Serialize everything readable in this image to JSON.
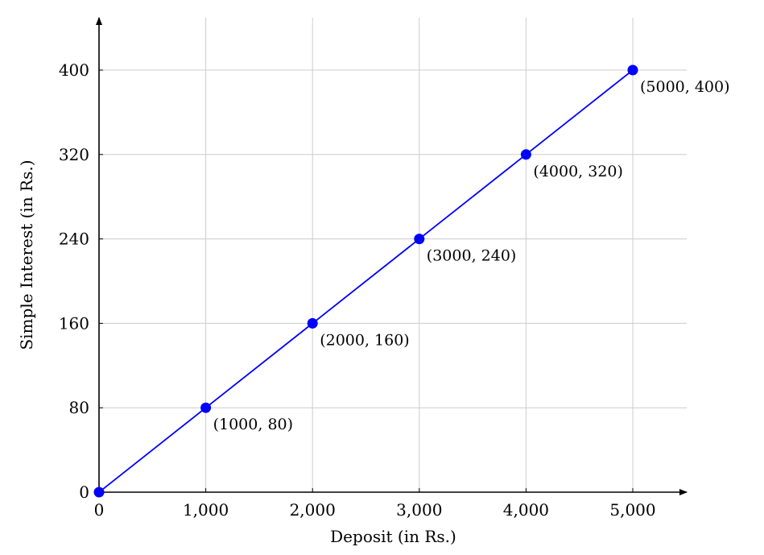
{
  "chart_data": {
    "type": "line",
    "title": "",
    "xlabel": "Deposit (in Rs.)",
    "ylabel": "Simple Interest (in Rs.)",
    "xlim": [
      0,
      5400
    ],
    "ylim": [
      0,
      450
    ],
    "grid": true,
    "x_ticks": [
      0,
      1000,
      2000,
      3000,
      4000,
      5000
    ],
    "x_tick_labels": [
      "0",
      "1,000",
      "2,000",
      "3,000",
      "4,000",
      "5,000"
    ],
    "y_ticks": [
      0,
      80,
      160,
      240,
      320,
      400
    ],
    "y_tick_labels": [
      "0",
      "80",
      "160",
      "240",
      "320",
      "400"
    ],
    "colors": {
      "series": "#0000ff",
      "grid": "#cccccc",
      "axis": "#000000"
    },
    "series": [
      {
        "x": [
          0,
          1000,
          2000,
          3000,
          4000,
          5000
        ],
        "y": [
          0,
          80,
          160,
          240,
          320,
          400
        ],
        "point_labels": [
          "",
          "(1000, 80)",
          "(2000, 160)",
          "(3000, 240)",
          "(4000, 320)",
          "(5000, 400)"
        ]
      }
    ]
  }
}
